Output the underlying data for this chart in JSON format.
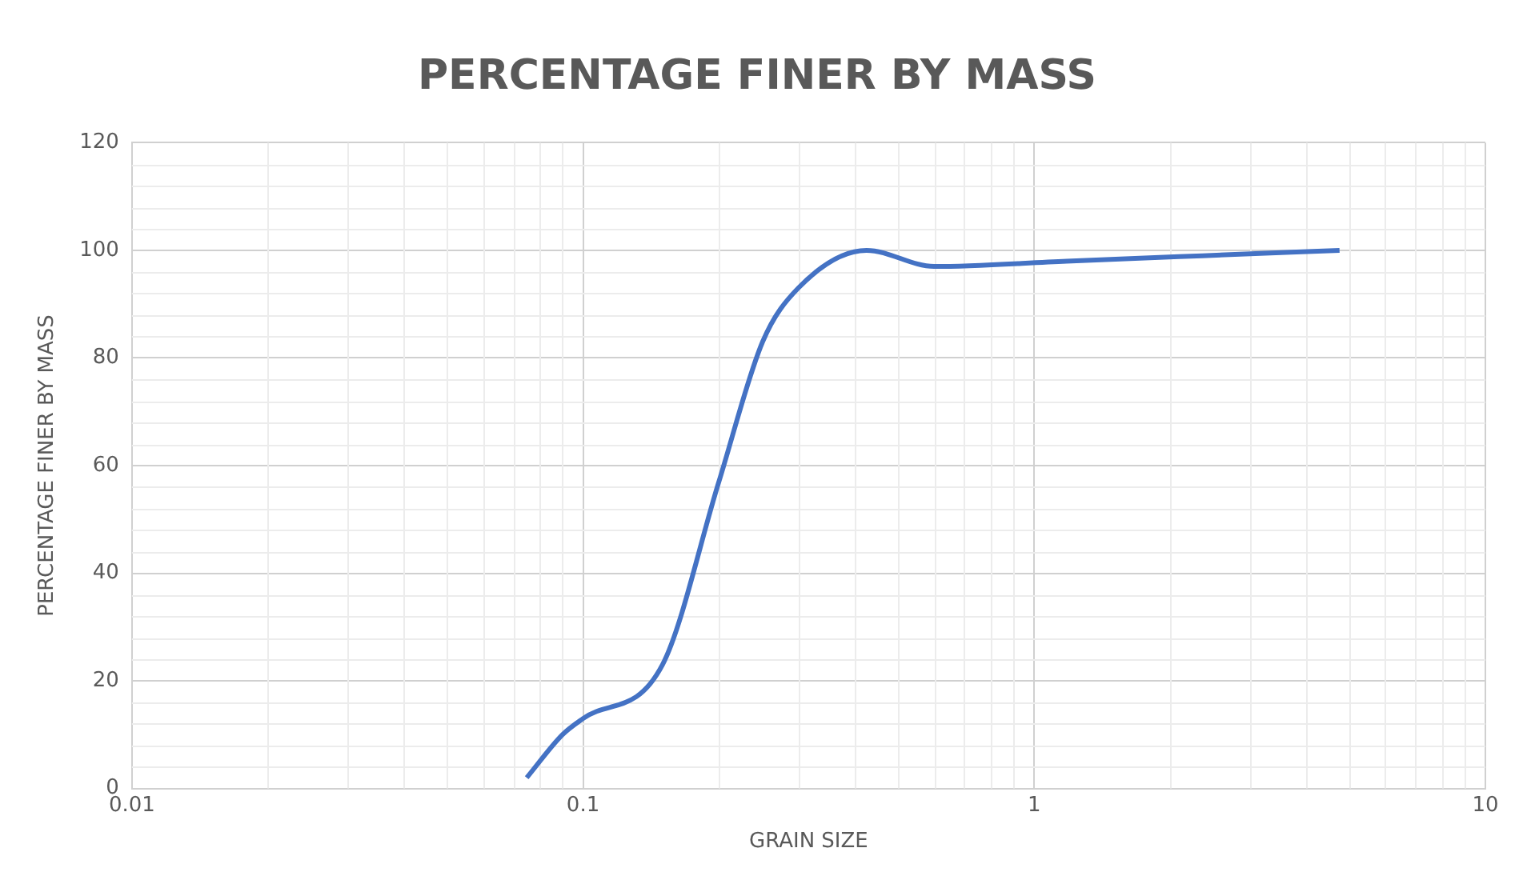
{
  "chart_data": {
    "type": "line",
    "title": "PERCENTAGE FINER BY MASS",
    "xlabel": "GRAIN SIZE",
    "ylabel": "PERCENTAGE FINER BY MASS",
    "x": [
      0.075,
      0.09,
      0.1,
      0.15,
      0.2,
      0.25,
      0.3,
      0.425,
      0.6,
      1.18,
      2.36,
      4.75
    ],
    "series": [
      {
        "color": "#4472c4",
        "values": [
          2,
          10,
          13,
          23,
          57,
          83,
          93,
          100,
          97,
          98,
          99,
          100
        ]
      }
    ],
    "log": "x",
    "xlim": [
      0.01,
      10
    ],
    "xticks": [
      0.01,
      0.1,
      1,
      10
    ],
    "ylim": [
      0,
      120
    ],
    "yticks": [
      0,
      20,
      40,
      60,
      80,
      100,
      120
    ],
    "grid": true,
    "legend": false,
    "marker": "none",
    "line_style": "solid"
  }
}
